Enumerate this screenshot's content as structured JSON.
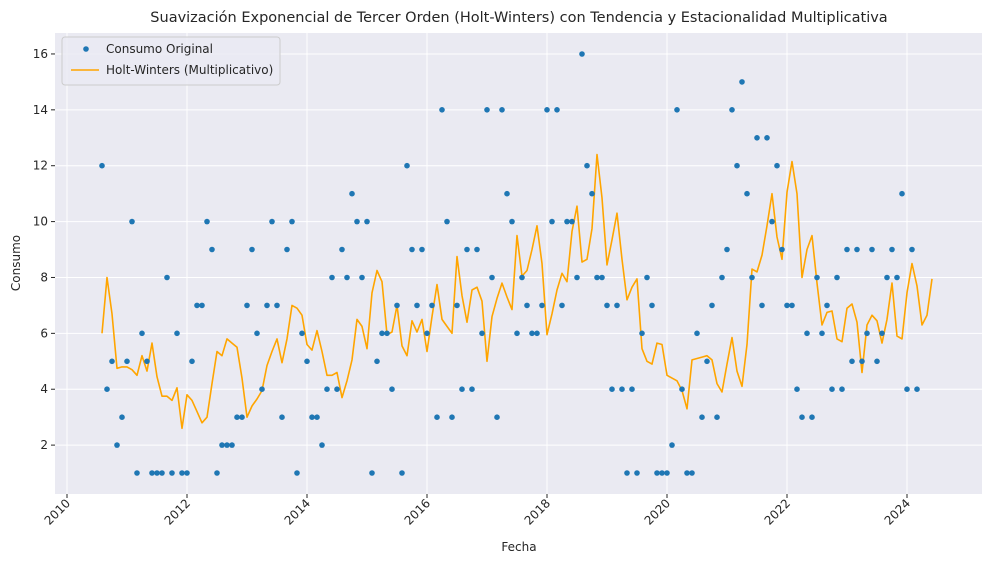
{
  "colors": {
    "plot_bg": "#eaeaf2",
    "grid": "#ffffff",
    "scatter": "#1f77b4",
    "line": "#ffa500",
    "text": "#262626"
  },
  "chart_data": {
    "type": "line",
    "title": "Suavización Exponencial de Tercer Orden (Holt-Winters) con Tendencia y Estacionalidad Multiplicativa",
    "xlabel": "Fecha",
    "ylabel": "Consumo",
    "xlim": [
      2009.8,
      2025.25
    ],
    "ylim": [
      0.25,
      16.75
    ],
    "x_ticks": [
      2010,
      2012,
      2014,
      2016,
      2018,
      2020,
      2022,
      2024
    ],
    "x_tick_labels": [
      "2010",
      "2012",
      "2014",
      "2016",
      "2018",
      "2020",
      "2022",
      "2024"
    ],
    "y_ticks": [
      2,
      4,
      6,
      8,
      10,
      12,
      14,
      16
    ],
    "y_tick_labels": [
      "2",
      "4",
      "6",
      "8",
      "10",
      "12",
      "14",
      "16"
    ],
    "grid": true,
    "legend_position": "top-left",
    "x_start_year": 2010,
    "x_start_month": 8,
    "series": [
      {
        "name": "Consumo Original",
        "style": "markers",
        "color": "#1f77b4",
        "values": [
          12,
          4,
          5,
          2,
          3,
          5,
          10,
          1,
          6,
          5,
          1,
          1,
          1,
          8,
          1,
          6,
          1,
          1,
          5,
          7,
          7,
          10,
          9,
          1,
          2,
          2,
          2,
          3,
          3,
          7,
          9,
          6,
          4,
          7,
          10,
          7,
          3,
          9,
          10,
          1,
          6,
          5,
          3,
          3,
          2,
          4,
          8,
          4,
          9,
          8,
          11,
          10,
          8,
          10,
          1,
          5,
          6,
          6,
          4,
          7,
          1,
          12,
          9,
          7,
          9,
          6,
          7,
          3,
          14,
          10,
          3,
          7,
          4,
          9,
          4,
          9,
          6,
          14,
          8,
          3,
          14,
          11,
          10,
          6,
          8,
          7,
          6,
          6,
          7,
          14,
          10,
          14,
          7,
          10,
          10,
          8,
          16,
          12,
          11,
          8,
          8,
          7,
          4,
          7,
          4,
          1,
          4,
          1,
          6,
          8,
          7,
          1,
          1,
          1,
          2,
          14,
          4,
          1,
          1,
          6,
          3,
          5,
          7,
          3,
          8,
          9,
          14,
          12,
          15,
          11,
          8,
          13,
          7,
          13,
          10,
          12,
          9,
          7,
          7,
          4,
          3,
          6,
          3,
          8,
          6,
          7,
          4,
          8,
          4,
          9,
          5,
          9,
          5,
          6,
          9,
          5,
          6,
          8,
          9,
          8,
          11,
          4,
          9,
          4
        ]
      },
      {
        "name": "Holt-Winters (Multiplicativo)",
        "style": "line",
        "color": "#ffa500",
        "values": [
          6.0,
          8.0,
          6.7,
          4.75,
          4.8,
          4.8,
          4.7,
          4.5,
          5.2,
          4.65,
          5.65,
          4.45,
          3.75,
          3.75,
          3.6,
          4.05,
          2.6,
          3.8,
          3.6,
          3.2,
          2.8,
          3.0,
          4.2,
          5.35,
          5.2,
          5.8,
          5.65,
          5.5,
          4.4,
          3.0,
          3.4,
          3.65,
          3.95,
          4.85,
          5.35,
          5.8,
          4.95,
          5.8,
          7.0,
          6.9,
          6.65,
          5.6,
          5.4,
          6.1,
          5.35,
          4.5,
          4.5,
          4.6,
          3.7,
          4.3,
          5.05,
          6.5,
          6.25,
          5.45,
          7.45,
          8.25,
          7.85,
          5.95,
          6.05,
          7.0,
          5.55,
          5.2,
          6.45,
          6.05,
          6.5,
          5.35,
          6.6,
          7.75,
          6.5,
          6.25,
          6.0,
          8.75,
          7.35,
          6.4,
          7.55,
          7.65,
          7.15,
          5.0,
          6.6,
          7.25,
          7.8,
          7.3,
          6.85,
          9.5,
          8.05,
          8.25,
          9.0,
          9.85,
          8.5,
          5.95,
          6.7,
          7.55,
          8.15,
          7.85,
          9.65,
          10.55,
          8.55,
          8.65,
          9.75,
          12.4,
          10.85,
          8.45,
          9.35,
          10.3,
          8.65,
          7.2,
          7.65,
          7.95,
          5.45,
          5.0,
          4.9,
          5.65,
          5.6,
          4.5,
          4.4,
          4.3,
          3.95,
          3.3,
          5.05,
          5.1,
          5.15,
          5.2,
          5.05,
          4.2,
          3.9,
          4.9,
          5.85,
          4.65,
          4.1,
          5.6,
          8.3,
          8.2,
          8.8,
          9.85,
          11.0,
          9.45,
          8.65,
          11.05,
          12.15,
          11.0,
          8.0,
          9.0,
          9.5,
          7.8,
          6.3,
          6.75,
          6.8,
          5.8,
          5.7,
          6.9,
          7.05,
          6.4,
          4.6,
          6.3,
          6.65,
          6.45,
          5.65,
          6.5,
          7.8,
          5.9,
          5.8,
          7.45,
          8.5,
          7.7,
          6.3,
          6.65,
          7.95
        ]
      }
    ]
  }
}
